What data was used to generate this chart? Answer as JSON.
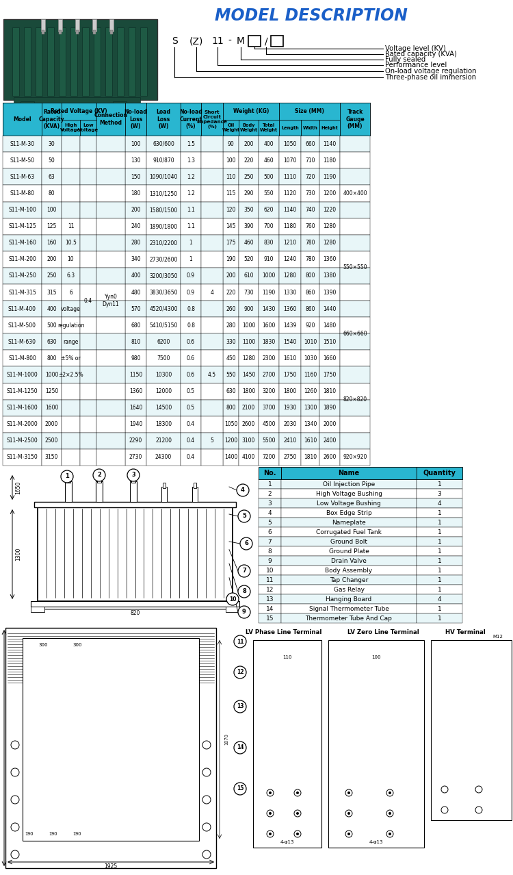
{
  "title": "MODEL DESCRIPTION",
  "model_labels": [
    "Voltage level (KV)",
    "Rated capacity (KVA)",
    "Fully sealed",
    "Performance level",
    "On-load voltage regulation",
    "Three-phase oil immersion"
  ],
  "table_rows": [
    [
      "S11-M-30",
      "30",
      "100",
      "630/600",
      "1.5",
      "90",
      "200",
      "400",
      "1050",
      "660",
      "1140",
      ""
    ],
    [
      "S11-M-50",
      "50",
      "130",
      "910/870",
      "1.3",
      "100",
      "220",
      "460",
      "1070",
      "710",
      "1180",
      ""
    ],
    [
      "S11-M-63",
      "63",
      "150",
      "1090/1040",
      "1.2",
      "110",
      "250",
      "500",
      "1110",
      "720",
      "1190",
      "400×400"
    ],
    [
      "S11-M-80",
      "80",
      "180",
      "1310/1250",
      "1.2",
      "115",
      "290",
      "550",
      "1120",
      "730",
      "1200",
      ""
    ],
    [
      "S11-M-100",
      "100",
      "200",
      "1580/1500",
      "1.1",
      "120",
      "350",
      "620",
      "1140",
      "740",
      "1220",
      ""
    ],
    [
      "S11-M-125",
      "125",
      "240",
      "1890/1800",
      "1.1",
      "145",
      "390",
      "700",
      "1180",
      "760",
      "1280",
      ""
    ],
    [
      "S11-M-160",
      "160",
      "280",
      "2310/2200",
      "1",
      "175",
      "460",
      "830",
      "1210",
      "780",
      "1280",
      ""
    ],
    [
      "S11-M-200",
      "200",
      "340",
      "2730/2600",
      "1",
      "190",
      "520",
      "910",
      "1240",
      "780",
      "1360",
      "550×550"
    ],
    [
      "S11-M-250",
      "250",
      "400",
      "3200/3050",
      "0.9",
      "200",
      "610",
      "1000",
      "1280",
      "800",
      "1380",
      ""
    ],
    [
      "S11-M-315",
      "315",
      "480",
      "3830/3650",
      "0.9",
      "220",
      "730",
      "1190",
      "1330",
      "860",
      "1390",
      ""
    ],
    [
      "S11-M-400",
      "400",
      "570",
      "4520/4300",
      "0.8",
      "260",
      "900",
      "1430",
      "1360",
      "860",
      "1440",
      ""
    ],
    [
      "S11-M-500",
      "500",
      "680",
      "5410/5150",
      "0.8",
      "280",
      "1000",
      "1600",
      "1439",
      "920",
      "1480",
      "660×660"
    ],
    [
      "S11-M-630",
      "630",
      "810",
      "6200",
      "0.6",
      "330",
      "1100",
      "1830",
      "1540",
      "1010",
      "1510",
      ""
    ],
    [
      "S11-M-800",
      "800",
      "980",
      "7500",
      "0.6",
      "450",
      "1280",
      "2300",
      "1610",
      "1030",
      "1660",
      ""
    ],
    [
      "S11-M-1000",
      "1000",
      "1150",
      "10300",
      "0.6",
      "550",
      "1450",
      "2700",
      "1750",
      "1160",
      "1750",
      "820×820"
    ],
    [
      "S11-M-1250",
      "1250",
      "1360",
      "12000",
      "0.5",
      "630",
      "1800",
      "3200",
      "1800",
      "1260",
      "1810",
      ""
    ],
    [
      "S11-M-1600",
      "1600",
      "1640",
      "14500",
      "0.5",
      "800",
      "2100",
      "3700",
      "1930",
      "1300",
      "1890",
      ""
    ],
    [
      "S11-M-2000",
      "2000",
      "1940",
      "18300",
      "0.4",
      "1050",
      "2600",
      "4500",
      "2030",
      "1340",
      "2000",
      ""
    ],
    [
      "S11-M-2500",
      "2500",
      "2290",
      "21200",
      "0.4",
      "1200",
      "3100",
      "5500",
      "2410",
      "1610",
      "2400",
      "920×920"
    ],
    [
      "S11-M-3150",
      "3150",
      "2730",
      "24300",
      "0.4",
      "1400",
      "4100",
      "7200",
      "2750",
      "1810",
      "2600",
      ""
    ]
  ],
  "parts_table": [
    [
      "1",
      "Oil Injection Pipe",
      "1"
    ],
    [
      "2",
      "High Voltage Bushing",
      "3"
    ],
    [
      "3",
      "Low Voltage Bushing",
      "4"
    ],
    [
      "4",
      "Box Edge Strip",
      "1"
    ],
    [
      "5",
      "Nameplate",
      "1"
    ],
    [
      "6",
      "Corrugated Fuel Tank",
      "1"
    ],
    [
      "7",
      "Ground Bolt",
      "1"
    ],
    [
      "8",
      "Ground Plate",
      "1"
    ],
    [
      "9",
      "Drain Valve",
      "1"
    ],
    [
      "10",
      "Body Assembly",
      "1"
    ],
    [
      "11",
      "Tap Changer",
      "1"
    ],
    [
      "12",
      "Gas Relay",
      "1"
    ],
    [
      "13",
      "Hanging Board",
      "4"
    ],
    [
      "14",
      "Signal Thermometer Tube",
      "1"
    ],
    [
      "15",
      "Thermometer Tube And Cap",
      "1"
    ]
  ],
  "bg_color": "#ffffff",
  "cyan_color": "#29b6d0",
  "title_color": "#1a5fc8"
}
